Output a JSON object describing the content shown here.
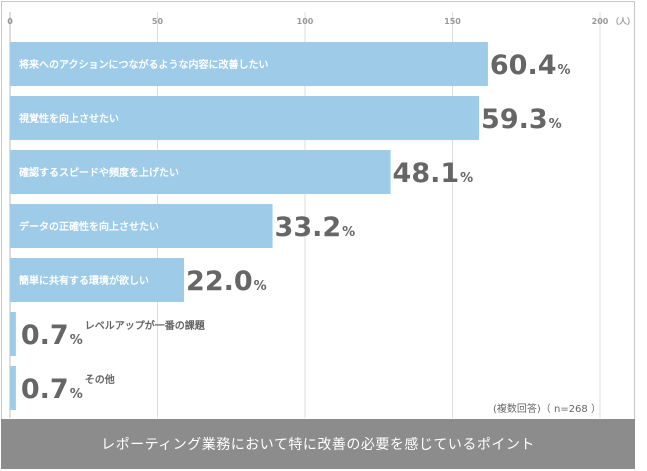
{
  "chart_data": {
    "type": "bar",
    "orientation": "horizontal",
    "title": "レポーティング業務において特に改善の必要を感じているポイント",
    "unit_label": "（人）",
    "note": "(複数回答)（ n=268 ）",
    "xlim": [
      0,
      200
    ],
    "xticks": [
      0,
      50,
      100,
      150,
      200
    ],
    "grid": true,
    "bar_color": "#9dcbe8",
    "categories": [
      "将来へのアクションにつながるような内容に改善したい",
      "視覚性を向上させたい",
      "確認するスピードや頻度を上げたい",
      "データの正確性を向上させたい",
      "簡単に共有する環境が欲しい",
      "レベルアップが一番の課題",
      "その他"
    ],
    "values": [
      162,
      159,
      129,
      89,
      59,
      2,
      2
    ],
    "percent_labels": [
      "60.4",
      "59.3",
      "48.1",
      "33.2",
      "22.0",
      "0.7",
      "0.7"
    ],
    "percent_suffix": "%"
  }
}
